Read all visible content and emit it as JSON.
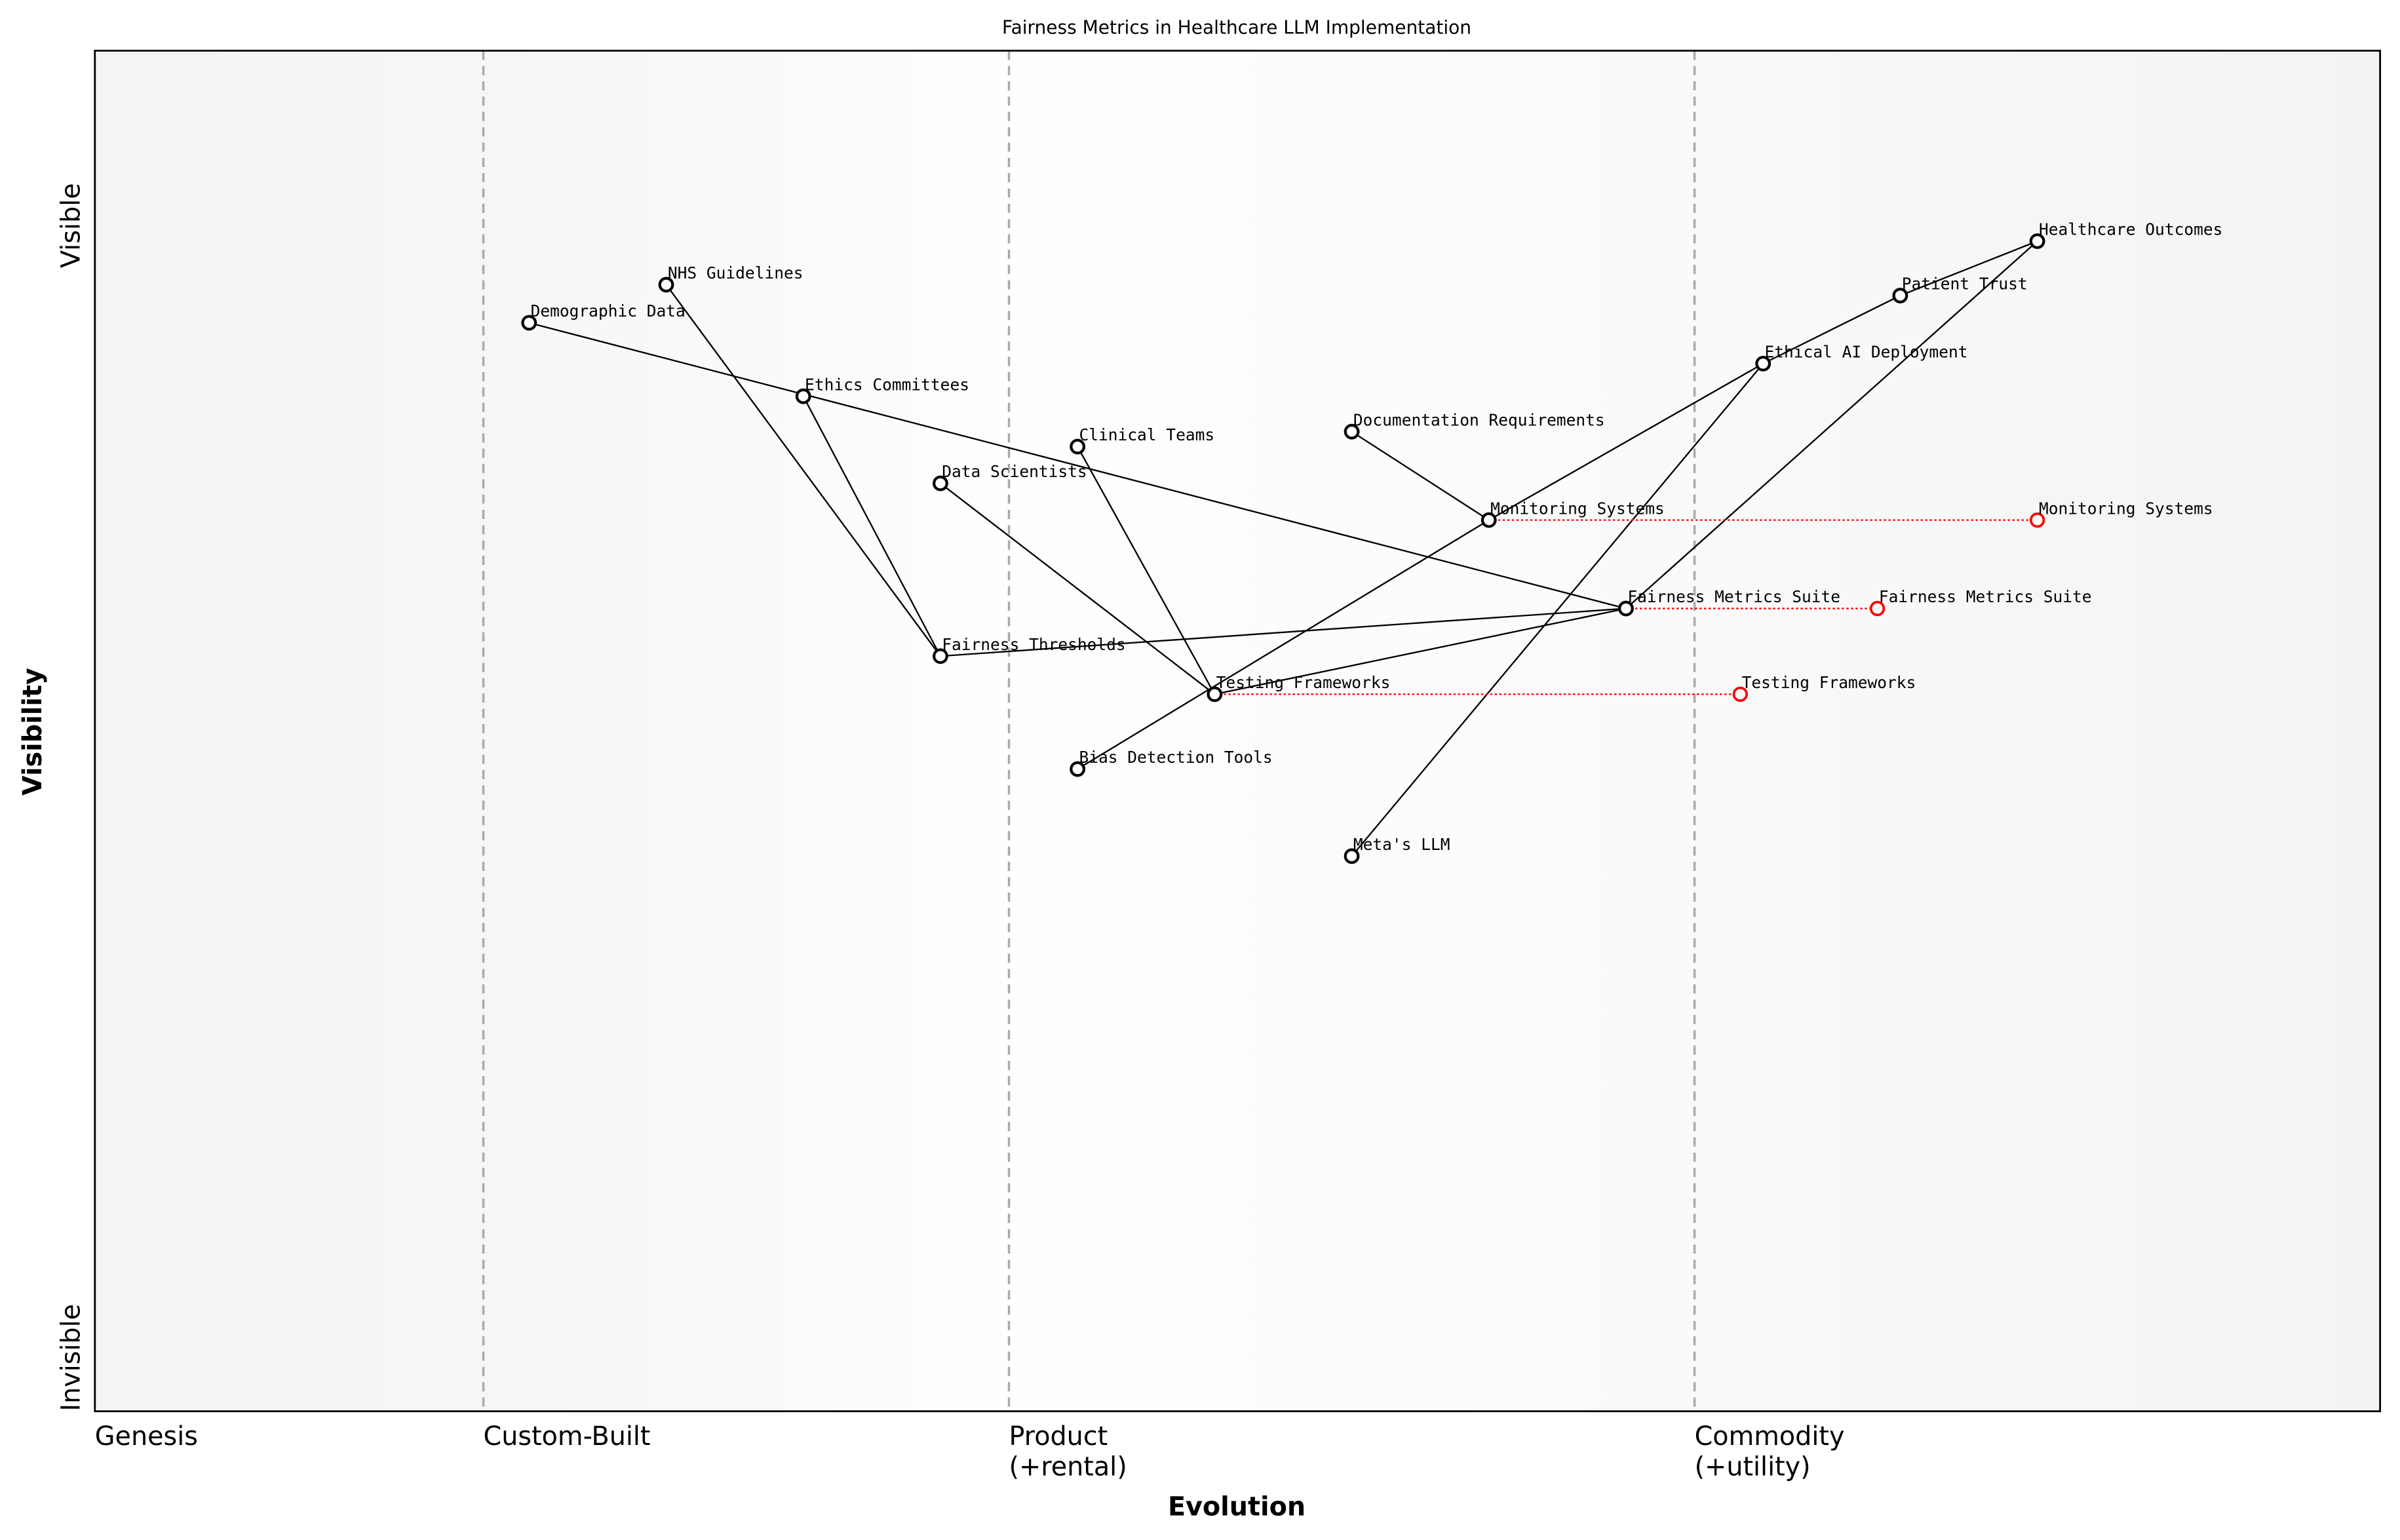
{
  "chart_data": {
    "type": "scatter",
    "title": "Fairness Metrics in Healthcare LLM Implementation",
    "xlabel": "Evolution",
    "ylabel": "Visibility",
    "xlim": [
      0,
      1
    ],
    "ylim": [
      0,
      1
    ],
    "grid": false,
    "x_stages": [
      {
        "x": 0,
        "label": [
          "Genesis"
        ]
      },
      {
        "x": 0.17,
        "label": [
          "Custom-Built"
        ]
      },
      {
        "x": 0.4,
        "label": [
          "Product",
          "(+rental)"
        ]
      },
      {
        "x": 0.7,
        "label": [
          "Commodity",
          "(+utility)"
        ]
      }
    ],
    "y_ticks": [
      {
        "y": 0,
        "label": "Invisible"
      },
      {
        "y": 0.9,
        "label": "Visible"
      }
    ],
    "components": [
      {
        "name": "Healthcare Outcomes",
        "x": 0.85,
        "y": 0.86
      },
      {
        "name": "Patient Trust",
        "x": 0.79,
        "y": 0.82
      },
      {
        "name": "Ethical AI Deployment",
        "x": 0.73,
        "y": 0.77
      },
      {
        "name": "Documentation Requirements",
        "x": 0.55,
        "y": 0.72
      },
      {
        "name": "Monitoring Systems",
        "x": 0.61,
        "y": 0.655
      },
      {
        "name": "Fairness Metrics Suite",
        "x": 0.67,
        "y": 0.59
      },
      {
        "name": "Testing Frameworks",
        "x": 0.49,
        "y": 0.527
      },
      {
        "name": "Bias Detection Tools",
        "x": 0.43,
        "y": 0.472
      },
      {
        "name": "Meta's LLM",
        "x": 0.55,
        "y": 0.408
      },
      {
        "name": "Clinical Teams",
        "x": 0.43,
        "y": 0.709
      },
      {
        "name": "Data Scientists",
        "x": 0.37,
        "y": 0.682
      },
      {
        "name": "Fairness Thresholds",
        "x": 0.37,
        "y": 0.555
      },
      {
        "name": "Ethics Committees",
        "x": 0.31,
        "y": 0.746
      },
      {
        "name": "NHS Guidelines",
        "x": 0.25,
        "y": 0.828
      },
      {
        "name": "Demographic Data",
        "x": 0.19,
        "y": 0.8
      }
    ],
    "links": [
      [
        "Healthcare Outcomes",
        "Patient Trust"
      ],
      [
        "Patient Trust",
        "Ethical AI Deployment"
      ],
      [
        "Healthcare Outcomes",
        "Fairness Metrics Suite"
      ],
      [
        "Ethical AI Deployment",
        "Monitoring Systems"
      ],
      [
        "Ethical AI Deployment",
        "Meta's LLM"
      ],
      [
        "Monitoring Systems",
        "Bias Detection Tools"
      ],
      [
        "Monitoring Systems",
        "Documentation Requirements"
      ],
      [
        "Fairness Metrics Suite",
        "Testing Frameworks"
      ],
      [
        "Fairness Metrics Suite",
        "Fairness Thresholds"
      ],
      [
        "Fairness Metrics Suite",
        "Demographic Data"
      ],
      [
        "Testing Frameworks",
        "Data Scientists"
      ],
      [
        "Testing Frameworks",
        "Clinical Teams"
      ],
      [
        "Fairness Thresholds",
        "Ethics Committees"
      ],
      [
        "Fairness Thresholds",
        "NHS Guidelines"
      ]
    ],
    "evolutions": [
      {
        "name": "Monitoring Systems",
        "from_x": 0.61,
        "to_x": 0.85,
        "y": 0.655
      },
      {
        "name": "Fairness Metrics Suite",
        "from_x": 0.67,
        "to_x": 0.78,
        "y": 0.59
      },
      {
        "name": "Testing Frameworks",
        "from_x": 0.49,
        "to_x": 0.72,
        "y": 0.527
      }
    ],
    "colors": {
      "component": "#000000",
      "evolution": "#ff0000",
      "stage_line": "#aaaaaa"
    }
  }
}
